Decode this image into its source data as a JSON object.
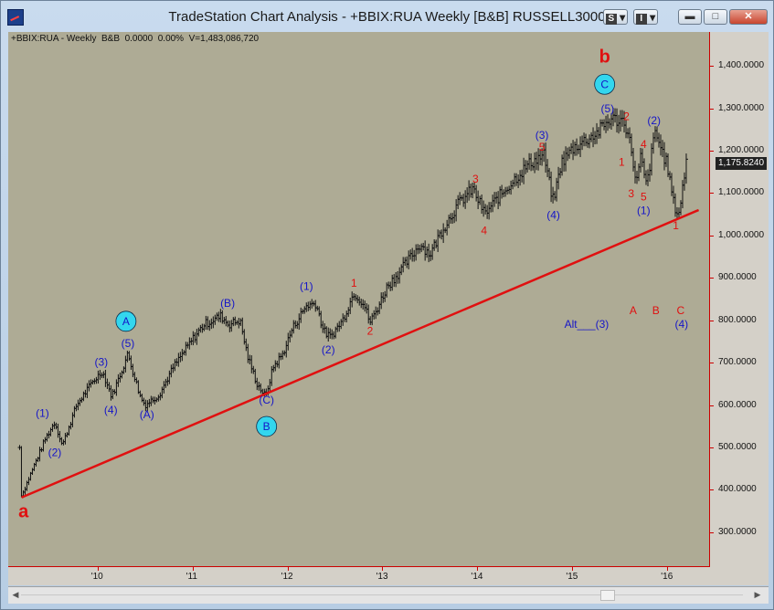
{
  "window": {
    "title": "TradeStation Chart Analysis - +BBIX:RUA Weekly [B&B] RUSSELL3000",
    "buttons": {
      "s_label": "S",
      "i_label": "I"
    },
    "controls": {
      "minimize": "▬",
      "maximize": "□",
      "close": "✕"
    }
  },
  "pane_header": "+BBIX:RUA - Weekly  B&B  0.0000  0.00%  V=1,483,086,720",
  "last_price": "1,175.8240",
  "colors": {
    "plot_bg": "#aeab95",
    "bars": "#111111",
    "trendline": "#e01010",
    "wave_blue": "#1515c8",
    "wave_red": "#e01010",
    "circle_fill": "#33d6ee",
    "axis": "#cc0000"
  },
  "chart_data": {
    "type": "line",
    "subtype": "weekly OHLC bars",
    "symbol": "+BBIX:RUA",
    "ylim": [
      220,
      1480
    ],
    "y_axis_labels": [
      "1,400.0000",
      "1,300.0000",
      "1,200.0000",
      "1,100.0000",
      "1,000.0000",
      "900.0000",
      "800.0000",
      "700.0000",
      "600.0000",
      "500.0000",
      "400.0000",
      "300.0000"
    ],
    "y_ticks": [
      1400,
      1300,
      1200,
      1100,
      1000,
      900,
      800,
      700,
      600,
      500,
      400,
      300
    ],
    "x_axis_labels": [
      "'10",
      "'11",
      "'12",
      "'13",
      "'14",
      "'15",
      "'16"
    ],
    "x_ticks": [
      2010,
      2011,
      2012,
      2013,
      2014,
      2015,
      2016
    ],
    "xlim": [
      2009.06,
      2016.44
    ],
    "price_path": [
      [
        2009.18,
        500
      ],
      [
        2009.2,
        385
      ],
      [
        2009.3,
        440
      ],
      [
        2009.45,
        520
      ],
      [
        2009.55,
        560
      ],
      [
        2009.63,
        505
      ],
      [
        2009.78,
        600
      ],
      [
        2009.95,
        655
      ],
      [
        2010.05,
        680
      ],
      [
        2010.15,
        620
      ],
      [
        2010.32,
        720
      ],
      [
        2010.45,
        620
      ],
      [
        2010.5,
        600
      ],
      [
        2010.65,
        625
      ],
      [
        2010.8,
        690
      ],
      [
        2011.0,
        755
      ],
      [
        2011.12,
        790
      ],
      [
        2011.3,
        810
      ],
      [
        2011.38,
        790
      ],
      [
        2011.5,
        800
      ],
      [
        2011.58,
        715
      ],
      [
        2011.68,
        650
      ],
      [
        2011.77,
        620
      ],
      [
        2011.85,
        690
      ],
      [
        2011.95,
        720
      ],
      [
        2012.05,
        780
      ],
      [
        2012.2,
        835
      ],
      [
        2012.3,
        840
      ],
      [
        2012.38,
        775
      ],
      [
        2012.45,
        760
      ],
      [
        2012.58,
        800
      ],
      [
        2012.7,
        865
      ],
      [
        2012.8,
        840
      ],
      [
        2012.87,
        795
      ],
      [
        2012.95,
        830
      ],
      [
        2013.05,
        880
      ],
      [
        2013.2,
        920
      ],
      [
        2013.4,
        980
      ],
      [
        2013.5,
        955
      ],
      [
        2013.62,
        1010
      ],
      [
        2013.8,
        1075
      ],
      [
        2013.95,
        1110
      ],
      [
        2014.08,
        1050
      ],
      [
        2014.2,
        1085
      ],
      [
        2014.4,
        1135
      ],
      [
        2014.55,
        1170
      ],
      [
        2014.7,
        1190
      ],
      [
        2014.76,
        1120
      ],
      [
        2014.8,
        1080
      ],
      [
        2014.88,
        1170
      ],
      [
        2015.0,
        1205
      ],
      [
        2015.1,
        1220
      ],
      [
        2015.25,
        1240
      ],
      [
        2015.4,
        1275
      ],
      [
        2015.55,
        1270
      ],
      [
        2015.63,
        1195
      ],
      [
        2015.67,
        1115
      ],
      [
        2015.72,
        1185
      ],
      [
        2015.78,
        1115
      ],
      [
        2015.87,
        1245
      ],
      [
        2016.0,
        1165
      ],
      [
        2016.07,
        1070
      ],
      [
        2016.12,
        1050
      ],
      [
        2016.16,
        1110
      ],
      [
        2016.2,
        1176
      ]
    ],
    "trendline": {
      "from": [
        2009.2,
        382
      ],
      "to": [
        2016.33,
        1060
      ]
    },
    "annotations": [
      {
        "text": "a",
        "x": 2009.22,
        "y": 335,
        "color": "red",
        "size": "large"
      },
      {
        "text": "(1)",
        "x": 2009.42,
        "y": 572,
        "color": "blue"
      },
      {
        "text": "(2)",
        "x": 2009.55,
        "y": 480,
        "color": "blue"
      },
      {
        "text": "(3)",
        "x": 2010.04,
        "y": 693,
        "color": "blue"
      },
      {
        "text": "(4)",
        "x": 2010.14,
        "y": 580,
        "color": "blue"
      },
      {
        "text": "(5)",
        "x": 2010.32,
        "y": 737,
        "color": "blue"
      },
      {
        "text": "A",
        "x": 2010.3,
        "y": 789,
        "color": "blue",
        "circle": true
      },
      {
        "text": "(A)",
        "x": 2010.52,
        "y": 569,
        "color": "blue"
      },
      {
        "text": "(B)",
        "x": 2011.37,
        "y": 832,
        "color": "blue"
      },
      {
        "text": "(C)",
        "x": 2011.78,
        "y": 603,
        "color": "blue"
      },
      {
        "text": "B",
        "x": 2011.78,
        "y": 541,
        "color": "blue",
        "circle": true
      },
      {
        "text": "(1)",
        "x": 2012.2,
        "y": 872,
        "color": "blue"
      },
      {
        "text": "(2)",
        "x": 2012.43,
        "y": 722,
        "color": "blue"
      },
      {
        "text": "1",
        "x": 2012.7,
        "y": 879,
        "color": "red"
      },
      {
        "text": "2",
        "x": 2012.87,
        "y": 766,
        "color": "red"
      },
      {
        "text": "3",
        "x": 2013.98,
        "y": 1125,
        "color": "red"
      },
      {
        "text": "4",
        "x": 2014.07,
        "y": 1003,
        "color": "red"
      },
      {
        "text": "(3)",
        "x": 2014.68,
        "y": 1228,
        "color": "blue"
      },
      {
        "text": "5",
        "x": 2014.68,
        "y": 1200,
        "color": "red"
      },
      {
        "text": "(4)",
        "x": 2014.8,
        "y": 1040,
        "color": "blue"
      },
      {
        "text": "(5)",
        "x": 2015.37,
        "y": 1290,
        "color": "blue"
      },
      {
        "text": "C",
        "x": 2015.34,
        "y": 1348,
        "color": "blue",
        "circle": true
      },
      {
        "text": "b",
        "x": 2015.34,
        "y": 1408,
        "color": "red",
        "size": "large"
      },
      {
        "text": "2",
        "x": 2015.57,
        "y": 1272,
        "color": "red"
      },
      {
        "text": "1",
        "x": 2015.52,
        "y": 1165,
        "color": "red"
      },
      {
        "text": "4",
        "x": 2015.75,
        "y": 1207,
        "color": "red"
      },
      {
        "text": "(2)",
        "x": 2015.86,
        "y": 1262,
        "color": "blue"
      },
      {
        "text": "3",
        "x": 2015.62,
        "y": 1090,
        "color": "red"
      },
      {
        "text": "5",
        "x": 2015.75,
        "y": 1083,
        "color": "red"
      },
      {
        "text": "(1)",
        "x": 2015.75,
        "y": 1050,
        "color": "blue"
      },
      {
        "text": "1",
        "x": 2016.09,
        "y": 1015,
        "color": "red"
      },
      {
        "text": "A",
        "x": 2015.64,
        "y": 815,
        "color": "red"
      },
      {
        "text": "B",
        "x": 2015.88,
        "y": 815,
        "color": "red"
      },
      {
        "text": "C",
        "x": 2016.14,
        "y": 815,
        "color": "red"
      },
      {
        "text": "Alt___(3)",
        "x": 2015.15,
        "y": 782,
        "color": "blue"
      },
      {
        "text": "(4)",
        "x": 2016.15,
        "y": 782,
        "color": "blue"
      }
    ]
  }
}
